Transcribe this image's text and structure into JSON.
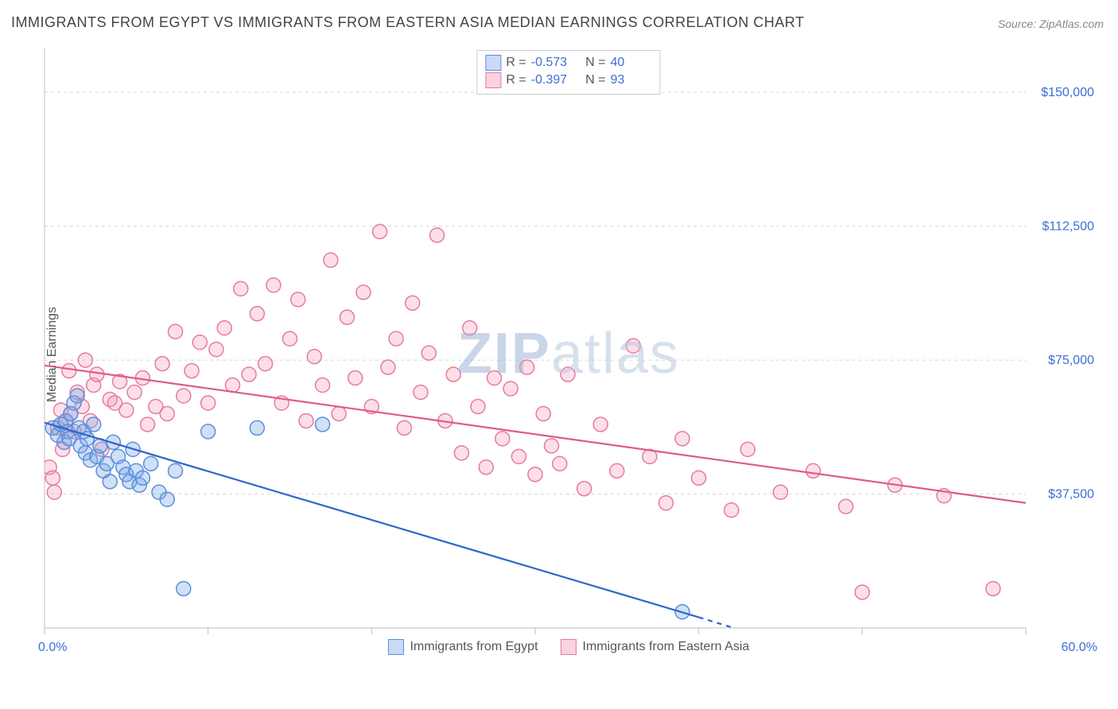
{
  "title": "IMMIGRANTS FROM EGYPT VS IMMIGRANTS FROM EASTERN ASIA MEDIAN EARNINGS CORRELATION CHART",
  "source": "Source: ZipAtlas.com",
  "watermark": "ZIPatlas",
  "ylabel": "Median Earnings",
  "chart": {
    "type": "scatter",
    "xlim": [
      0,
      60
    ],
    "ylim": [
      0,
      162500
    ],
    "xtick_positions": [
      0,
      10,
      20,
      30,
      40,
      50,
      60
    ],
    "ytick_values": [
      37500,
      75000,
      112500,
      150000
    ],
    "ytick_labels": [
      "$37,500",
      "$75,000",
      "$112,500",
      "$150,000"
    ],
    "x_start_label": "0.0%",
    "x_end_label": "60.0%",
    "background_color": "#ffffff",
    "grid_color": "#d8d8d8",
    "axis_color": "#bfbfbf",
    "tick_color": "#bfbfbf",
    "marker_radius": 9,
    "marker_stroke_width": 1.5,
    "trendline_width": 2.2,
    "axis_label_color": "#3b6fd6",
    "axis_label_fontsize": 16
  },
  "series": {
    "egypt": {
      "label": "Immigrants from Egypt",
      "fill": "rgba(120,165,230,0.35)",
      "stroke": "#5b8edb",
      "trend_color": "#2e66c9",
      "trend_y_start": 57500,
      "trend_y_end_x": 40,
      "trend_y_end": 3000,
      "dash_to_x": 50,
      "dash_to_y": -11000,
      "R": "-0.573",
      "N": "40",
      "points": [
        [
          0.5,
          56000
        ],
        [
          0.8,
          54000
        ],
        [
          1.0,
          57000
        ],
        [
          1.2,
          52000
        ],
        [
          1.3,
          58000
        ],
        [
          1.4,
          55000
        ],
        [
          1.5,
          53000
        ],
        [
          1.6,
          60000
        ],
        [
          1.8,
          63000
        ],
        [
          2.0,
          65000
        ],
        [
          2.1,
          56000
        ],
        [
          2.2,
          51000
        ],
        [
          2.4,
          55000
        ],
        [
          2.5,
          49000
        ],
        [
          2.6,
          53000
        ],
        [
          2.8,
          47000
        ],
        [
          3.0,
          57000
        ],
        [
          3.2,
          48000
        ],
        [
          3.4,
          51000
        ],
        [
          3.6,
          44000
        ],
        [
          3.8,
          46000
        ],
        [
          4.0,
          41000
        ],
        [
          4.2,
          52000
        ],
        [
          4.5,
          48000
        ],
        [
          4.8,
          45000
        ],
        [
          5.0,
          43000
        ],
        [
          5.2,
          41000
        ],
        [
          5.4,
          50000
        ],
        [
          5.6,
          44000
        ],
        [
          5.8,
          40000
        ],
        [
          6.0,
          42000
        ],
        [
          6.5,
          46000
        ],
        [
          7.0,
          38000
        ],
        [
          7.5,
          36000
        ],
        [
          8.0,
          44000
        ],
        [
          8.5,
          11000
        ],
        [
          10.0,
          55000
        ],
        [
          13.0,
          56000
        ],
        [
          17.0,
          57000
        ],
        [
          39.0,
          4500
        ]
      ]
    },
    "easia": {
      "label": "Immigrants from Eastern Asia",
      "fill": "rgba(245,150,180,0.30)",
      "stroke": "#e77aa0",
      "trend_color": "#e05a8a",
      "trend_y_start": 73500,
      "trend_y_end_x": 60,
      "trend_y_end": 35000,
      "R": "-0.397",
      "N": "93",
      "points": [
        [
          0.3,
          45000
        ],
        [
          0.5,
          42000
        ],
        [
          0.6,
          38000
        ],
        [
          0.8,
          56000
        ],
        [
          1.0,
          61000
        ],
        [
          1.1,
          50000
        ],
        [
          1.3,
          58000
        ],
        [
          1.5,
          72000
        ],
        [
          1.6,
          60000
        ],
        [
          1.8,
          55000
        ],
        [
          2.0,
          66000
        ],
        [
          2.3,
          62000
        ],
        [
          2.5,
          75000
        ],
        [
          2.8,
          58000
        ],
        [
          3.0,
          68000
        ],
        [
          3.2,
          71000
        ],
        [
          3.5,
          50000
        ],
        [
          4.0,
          64000
        ],
        [
          4.3,
          63000
        ],
        [
          4.6,
          69000
        ],
        [
          5.0,
          61000
        ],
        [
          5.5,
          66000
        ],
        [
          6.0,
          70000
        ],
        [
          6.3,
          57000
        ],
        [
          6.8,
          62000
        ],
        [
          7.2,
          74000
        ],
        [
          7.5,
          60000
        ],
        [
          8.0,
          83000
        ],
        [
          8.5,
          65000
        ],
        [
          9.0,
          72000
        ],
        [
          9.5,
          80000
        ],
        [
          10.0,
          63000
        ],
        [
          10.5,
          78000
        ],
        [
          11.0,
          84000
        ],
        [
          11.5,
          68000
        ],
        [
          12.0,
          95000
        ],
        [
          12.5,
          71000
        ],
        [
          13.0,
          88000
        ],
        [
          13.5,
          74000
        ],
        [
          14.0,
          96000
        ],
        [
          14.5,
          63000
        ],
        [
          15.0,
          81000
        ],
        [
          15.5,
          92000
        ],
        [
          16.0,
          58000
        ],
        [
          16.5,
          76000
        ],
        [
          17.0,
          68000
        ],
        [
          17.5,
          103000
        ],
        [
          18.0,
          60000
        ],
        [
          18.5,
          87000
        ],
        [
          19.0,
          70000
        ],
        [
          19.5,
          94000
        ],
        [
          20.0,
          62000
        ],
        [
          20.5,
          111000
        ],
        [
          21.0,
          73000
        ],
        [
          21.5,
          81000
        ],
        [
          22.0,
          56000
        ],
        [
          22.5,
          91000
        ],
        [
          23.0,
          66000
        ],
        [
          23.5,
          77000
        ],
        [
          24.0,
          110000
        ],
        [
          24.5,
          58000
        ],
        [
          25.0,
          71000
        ],
        [
          25.5,
          49000
        ],
        [
          26.0,
          84000
        ],
        [
          26.5,
          62000
        ],
        [
          27.0,
          45000
        ],
        [
          27.5,
          70000
        ],
        [
          28.0,
          53000
        ],
        [
          28.5,
          67000
        ],
        [
          29.0,
          48000
        ],
        [
          29.5,
          73000
        ],
        [
          30.0,
          43000
        ],
        [
          30.5,
          60000
        ],
        [
          31.0,
          51000
        ],
        [
          31.5,
          46000
        ],
        [
          32.0,
          71000
        ],
        [
          33.0,
          39000
        ],
        [
          34.0,
          57000
        ],
        [
          35.0,
          44000
        ],
        [
          36.0,
          79000
        ],
        [
          37.0,
          48000
        ],
        [
          38.0,
          35000
        ],
        [
          39.0,
          53000
        ],
        [
          40.0,
          42000
        ],
        [
          42.0,
          33000
        ],
        [
          43.0,
          50000
        ],
        [
          45.0,
          38000
        ],
        [
          47.0,
          44000
        ],
        [
          49.0,
          34000
        ],
        [
          50.0,
          10000
        ],
        [
          52.0,
          40000
        ],
        [
          55.0,
          37000
        ],
        [
          58.0,
          11000
        ]
      ]
    }
  },
  "legend": {
    "r_label": "R =",
    "n_label": "N ="
  }
}
